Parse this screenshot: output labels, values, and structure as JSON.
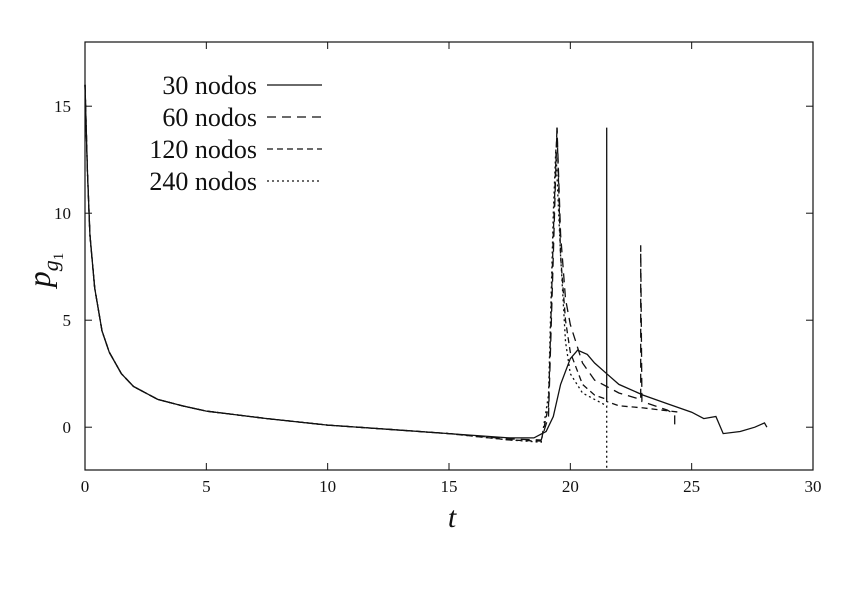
{
  "chart_data": {
    "type": "line",
    "x_label": "t",
    "y_label": {
      "base": "p",
      "sub": "g",
      "subsub": "1"
    },
    "xlim": [
      0,
      30
    ],
    "ylim": [
      -2,
      18
    ],
    "xticks": [
      0,
      5,
      10,
      15,
      20,
      25,
      30
    ],
    "yticks": [
      0,
      5,
      10,
      15
    ],
    "legend": "upper left",
    "series": [
      {
        "name": "30 nodos",
        "color": "#111111",
        "dash": "none",
        "x": [
          0,
          0.1,
          0.2,
          0.4,
          0.7,
          1,
          1.5,
          2,
          3,
          4,
          5,
          7.5,
          10,
          12.5,
          15,
          17.5,
          18.5,
          19,
          19.3,
          19.6,
          20,
          20.3,
          20.7,
          21,
          21.5,
          22,
          23,
          24,
          25,
          25.5,
          26,
          26.3,
          27,
          27.6,
          28,
          28.1
        ],
        "values": [
          16,
          12,
          9,
          6.5,
          4.5,
          3.5,
          2.5,
          1.9,
          1.3,
          1.0,
          0.75,
          0.4,
          0.1,
          -0.1,
          -0.3,
          -0.5,
          -0.5,
          -0.2,
          0.5,
          2,
          3.2,
          3.6,
          3.4,
          3,
          2.5,
          2.0,
          1.5,
          1.1,
          0.7,
          0.4,
          0.5,
          -0.3,
          -0.2,
          0,
          0.2,
          0
        ]
      },
      {
        "name": "60 nodos",
        "color": "#111111",
        "dash": "9,6",
        "x": [
          0,
          0.1,
          0.2,
          0.4,
          0.7,
          1,
          1.5,
          2,
          3,
          4,
          5,
          7.5,
          10,
          12.5,
          15,
          17.5,
          18.8,
          19.1,
          19.3,
          19.45,
          19.6,
          19.8,
          20,
          20.5,
          21,
          21.5,
          22,
          22.9,
          22.9,
          22.95,
          24,
          24.3,
          24.3
        ],
        "values": [
          16,
          12,
          9,
          6.5,
          4.5,
          3.5,
          2.5,
          1.9,
          1.3,
          1.0,
          0.75,
          0.4,
          0.1,
          -0.1,
          -0.3,
          -0.55,
          -0.6,
          0.5,
          8,
          14,
          9,
          6,
          4.8,
          3,
          2.2,
          1.9,
          1.6,
          1.3,
          8.5,
          1.2,
          0.8,
          0.6,
          0.1
        ]
      },
      {
        "name": "120 nodos",
        "color": "#111111",
        "dash": "6,4",
        "x": [
          0,
          0.1,
          0.2,
          0.4,
          0.7,
          1,
          1.5,
          2,
          3,
          4,
          5,
          7.5,
          10,
          12.5,
          15,
          17.5,
          18.8,
          19.1,
          19.3,
          19.45,
          19.6,
          19.8,
          20,
          20.5,
          21,
          21.5,
          21.5,
          21.5,
          22,
          23,
          24.5
        ],
        "values": [
          16,
          12,
          9,
          6.5,
          4.5,
          3.5,
          2.5,
          1.9,
          1.3,
          1.0,
          0.75,
          0.4,
          0.1,
          -0.1,
          -0.3,
          -0.6,
          -0.65,
          1,
          9,
          14,
          8,
          5,
          3.5,
          2,
          1.5,
          1.3,
          14,
          1.2,
          1.0,
          0.9,
          0.7
        ]
      },
      {
        "name": "240 nodos",
        "color": "#111111",
        "dash": "2,3",
        "x": [
          0,
          0.1,
          0.2,
          0.4,
          0.7,
          1,
          1.5,
          2,
          3,
          4,
          5,
          7.5,
          10,
          12.5,
          15,
          17.5,
          18.8,
          19.1,
          19.3,
          19.4,
          19.6,
          19.8,
          20,
          20.5,
          21,
          21.5,
          21.5
        ],
        "values": [
          16,
          12,
          9,
          6.5,
          4.5,
          3.5,
          2.5,
          1.9,
          1.3,
          1.0,
          0.75,
          0.4,
          0.1,
          -0.1,
          -0.3,
          -0.6,
          -0.7,
          1.5,
          10,
          13,
          8,
          4,
          2.5,
          1.6,
          1.3,
          1.0,
          -1.9
        ]
      }
    ]
  }
}
